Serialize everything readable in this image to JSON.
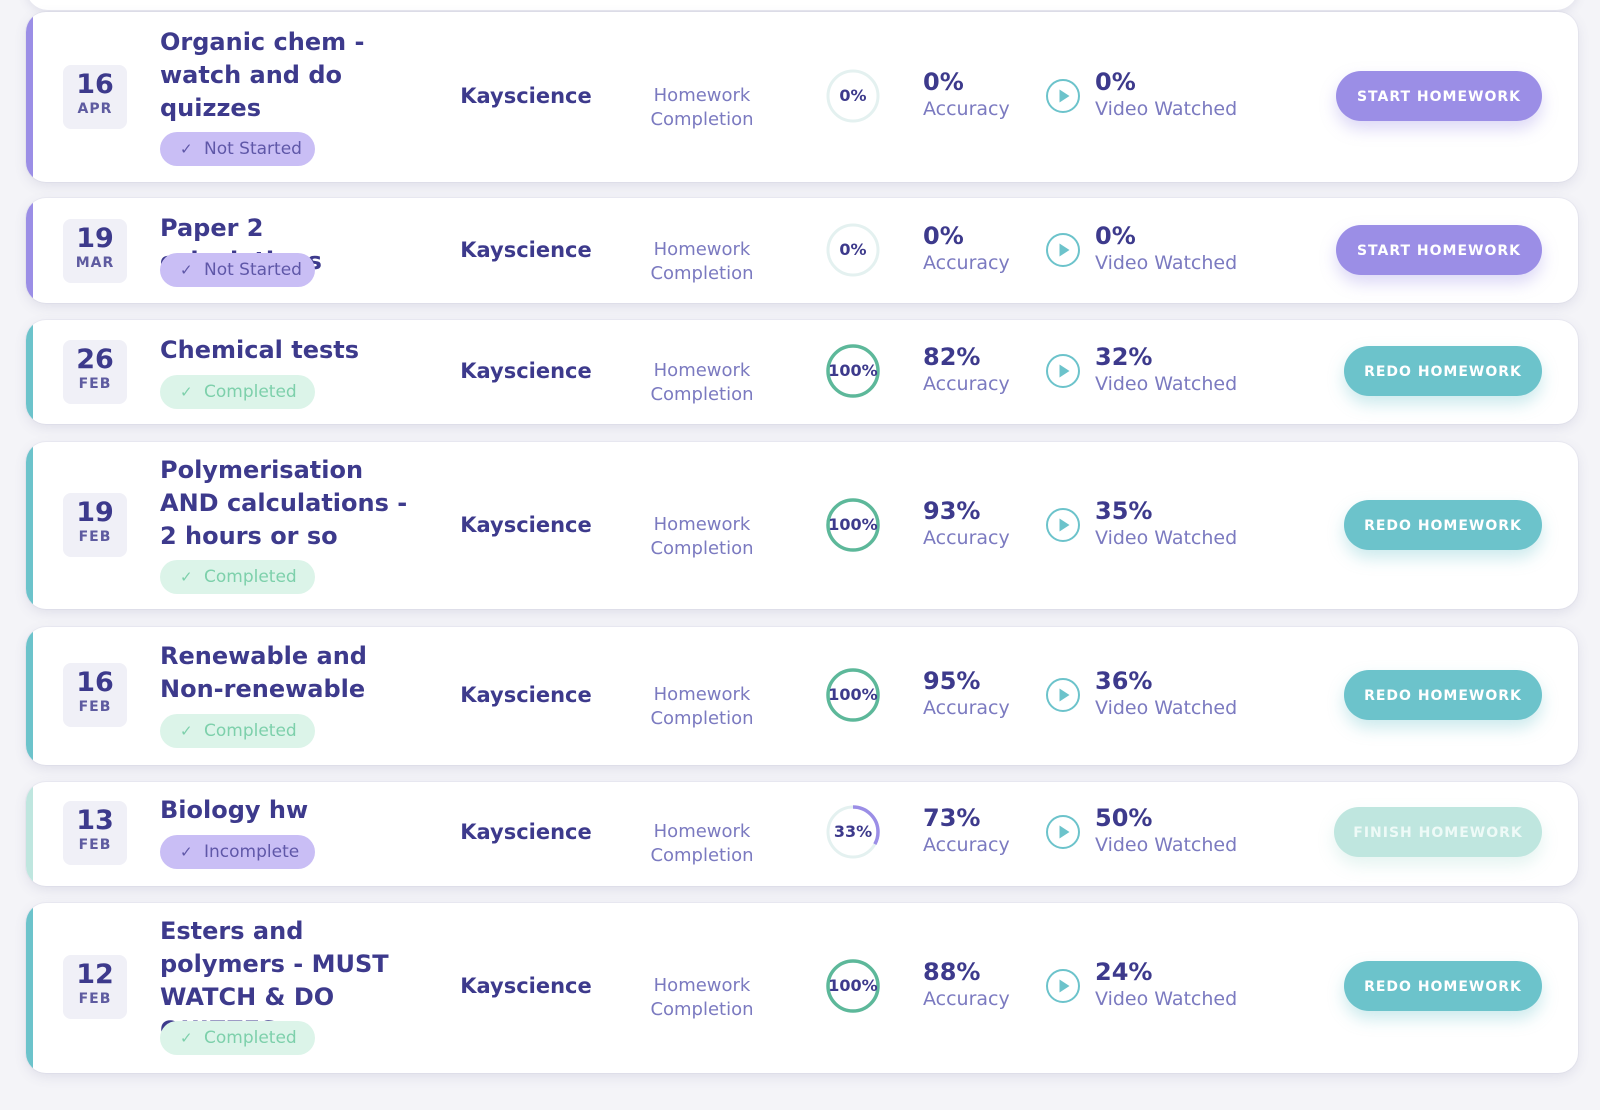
{
  "theme": {
    "purple": "#9b8ee6",
    "teal": "#6cc3cb",
    "mint": "#bfe6df",
    "navy": "#3d3a8c",
    "ring_green": "#5db89a",
    "ring_purple": "#9b8ee6"
  },
  "assignments": [
    {
      "day": "16",
      "month": "APR",
      "title": "Organic chem - watch and do quizzes",
      "status": "Not Started",
      "teacher": "Kayscience",
      "completion_label": "Homework Completion",
      "completion": "0%",
      "completion_fraction": 0,
      "accuracy": "0%",
      "accuracy_label": "Accuracy",
      "video": "0%",
      "video_label": "Video Watched",
      "action": "START HOMEWORK",
      "play_icon": "play-circle-icon",
      "check_icon": "checkmark-icon"
    },
    {
      "day": "19",
      "month": "MAR",
      "title": "Paper 2 calculations",
      "status": "Not Started",
      "teacher": "Kayscience",
      "completion_label": "Homework Completion",
      "completion": "0%",
      "completion_fraction": 0,
      "accuracy": "0%",
      "accuracy_label": "Accuracy",
      "video": "0%",
      "video_label": "Video Watched",
      "action": "START HOMEWORK",
      "play_icon": "play-circle-icon",
      "check_icon": "checkmark-icon"
    },
    {
      "day": "26",
      "month": "FEB",
      "title": "Chemical tests",
      "status": "Completed",
      "teacher": "Kayscience",
      "completion_label": "Homework Completion",
      "completion": "100%",
      "completion_fraction": 1,
      "accuracy": "82%",
      "accuracy_label": "Accuracy",
      "video": "32%",
      "video_label": "Video Watched",
      "action": "REDO HOMEWORK",
      "play_icon": "play-circle-icon",
      "check_icon": "checkmark-icon"
    },
    {
      "day": "19",
      "month": "FEB",
      "title": "Polymerisation AND calculations - 2 hours or so",
      "status": "Completed",
      "teacher": "Kayscience",
      "completion_label": "Homework Completion",
      "completion": "100%",
      "completion_fraction": 1,
      "accuracy": "93%",
      "accuracy_label": "Accuracy",
      "video": "35%",
      "video_label": "Video Watched",
      "action": "REDO HOMEWORK",
      "play_icon": "play-circle-icon",
      "check_icon": "checkmark-icon"
    },
    {
      "day": "16",
      "month": "FEB",
      "title": "Renewable and Non-renewable",
      "status": "Completed",
      "teacher": "Kayscience",
      "completion_label": "Homework Completion",
      "completion": "100%",
      "completion_fraction": 1,
      "accuracy": "95%",
      "accuracy_label": "Accuracy",
      "video": "36%",
      "video_label": "Video Watched",
      "action": "REDO HOMEWORK",
      "play_icon": "play-circle-icon",
      "check_icon": "checkmark-icon"
    },
    {
      "day": "13",
      "month": "FEB",
      "title": "Biology hw",
      "status": "Incomplete",
      "teacher": "Kayscience",
      "completion_label": "Homework Completion",
      "completion": "33%",
      "completion_fraction": 0.33,
      "accuracy": "73%",
      "accuracy_label": "Accuracy",
      "video": "50%",
      "video_label": "Video Watched",
      "action": "FINISH HOMEWORK",
      "play_icon": "play-circle-icon",
      "check_icon": "checkmark-icon"
    },
    {
      "day": "12",
      "month": "FEB",
      "title": "Esters and polymers - MUST WATCH & DO QUIZZES",
      "status": "Completed",
      "teacher": "Kayscience",
      "completion_label": "Homework Completion",
      "completion": "100%",
      "completion_fraction": 1,
      "accuracy": "88%",
      "accuracy_label": "Accuracy",
      "video": "24%",
      "video_label": "Video Watched",
      "action": "REDO HOMEWORK",
      "play_icon": "play-circle-icon",
      "check_icon": "checkmark-icon"
    }
  ]
}
